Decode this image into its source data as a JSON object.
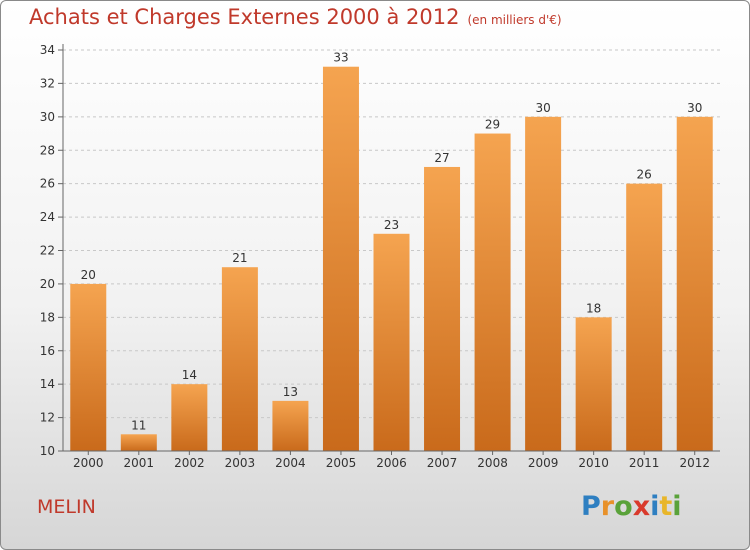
{
  "chart_data": {
    "type": "bar",
    "title": "Achats et Charges Externes 2000 à 2012",
    "subtitle": "(en milliers d'€)",
    "categories": [
      "2000",
      "2001",
      "2002",
      "2003",
      "2004",
      "2005",
      "2006",
      "2007",
      "2008",
      "2009",
      "2010",
      "2011",
      "2012"
    ],
    "values": [
      20,
      11,
      14,
      21,
      13,
      33,
      23,
      27,
      29,
      30,
      18,
      26,
      30
    ],
    "ylim": [
      10,
      34
    ],
    "yticks": [
      10,
      12,
      14,
      16,
      18,
      20,
      22,
      24,
      26,
      28,
      30,
      32,
      34
    ],
    "grid": true,
    "bar_color_light": "#f5a450",
    "bar_color_dark": "#c96a1b"
  },
  "place_name": "MELIN",
  "logo": {
    "text": "Proxiti",
    "letters": [
      {
        "ch": "P",
        "color": "#2e7fc1"
      },
      {
        "ch": "r",
        "color": "#e8912a"
      },
      {
        "ch": "o",
        "color": "#5aa23a"
      },
      {
        "ch": "x",
        "color": "#d93a2c"
      },
      {
        "ch": "i",
        "color": "#2e7fc1"
      },
      {
        "ch": "t",
        "color": "#e8b62a"
      },
      {
        "ch": "i",
        "color": "#5aa23a"
      }
    ]
  }
}
